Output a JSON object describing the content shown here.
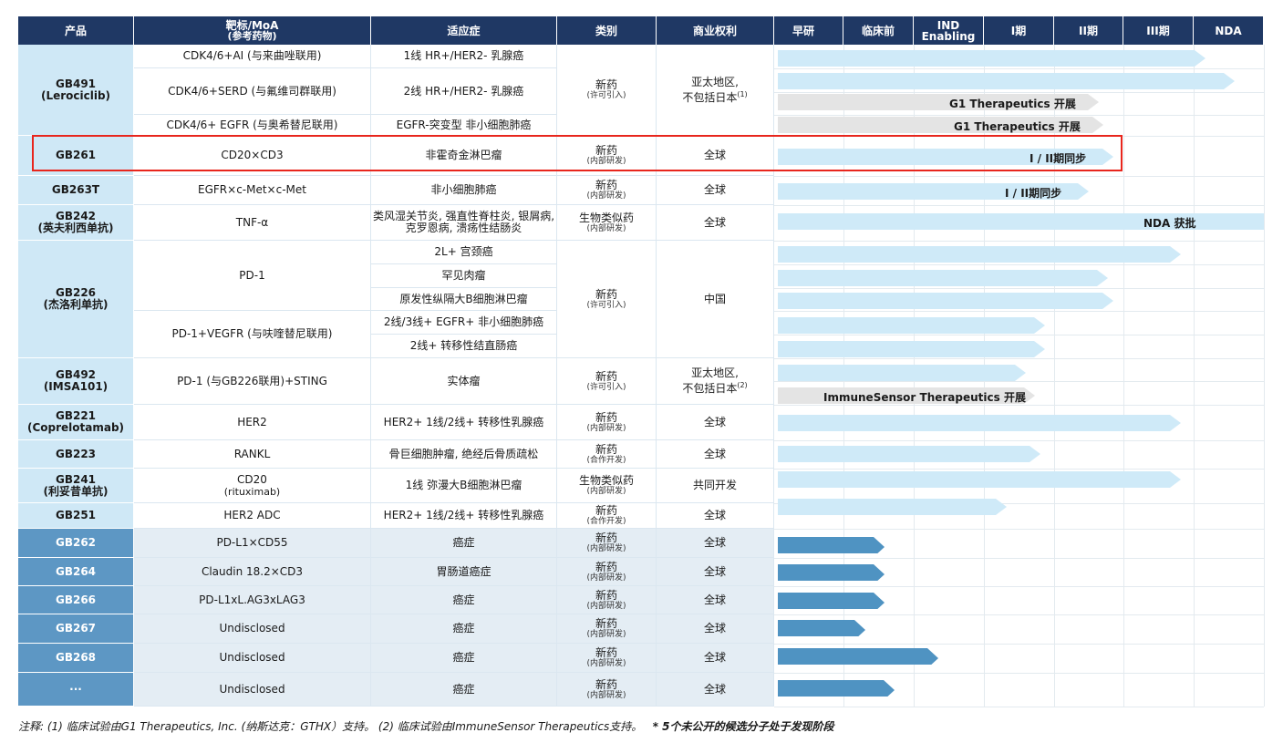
{
  "colors": {
    "header_bg": "#1f3864",
    "product_bg_light": "#cfe8f6",
    "product_bg_dark": "#5d97c4",
    "bar_light": "#cfeaf8",
    "bar_partner": "#e4e4e4",
    "bar_dark": "#4f93c2",
    "highlight": "#e8261d"
  },
  "headers": {
    "product": "产品",
    "target_line1": "靶标/MoA",
    "target_line2": "(参考药物)",
    "indication": "适应症",
    "category": "类别",
    "rights": "商业权利",
    "stages": [
      "早研",
      "临床前",
      "IND Enabling",
      "I期",
      "II期",
      "III期",
      "NDA"
    ]
  },
  "products": [
    {
      "name": "GB491",
      "name2": "(Lerociclib)"
    },
    {
      "name": "GB261",
      "name2": ""
    },
    {
      "name": "GB263T",
      "name2": ""
    },
    {
      "name": "GB242",
      "name2": "(英夫利西单抗)"
    },
    {
      "name": "GB226",
      "name2": "(杰洛利单抗)"
    },
    {
      "name": "GB492",
      "name2": "(IMSA101)"
    },
    {
      "name": "GB221",
      "name2": "(Coprelotamab)"
    },
    {
      "name": "GB223",
      "name2": ""
    },
    {
      "name": "GB241",
      "name2": "(利妥昔单抗)"
    },
    {
      "name": "GB251",
      "name2": ""
    },
    {
      "name": "GB262",
      "name2": ""
    },
    {
      "name": "GB264",
      "name2": ""
    },
    {
      "name": "GB266",
      "name2": ""
    },
    {
      "name": "GB267",
      "name2": ""
    },
    {
      "name": "GB268",
      "name2": ""
    },
    {
      "name": "···",
      "name2": ""
    }
  ],
  "targets": [
    {
      "l1": "CDK4/6+AI (与来曲唑联用)",
      "l2": ""
    },
    {
      "l1": "CDK4/6+SERD (与氟维司群联用)",
      "l2": ""
    },
    {
      "l1": "CDK4/6+ EGFR (与奥希替尼联用)",
      "l2": ""
    },
    {
      "l1": "CD20×CD3",
      "l2": ""
    },
    {
      "l1": "EGFR×c-Met×c-Met",
      "l2": ""
    },
    {
      "l1": "TNF-α",
      "l2": ""
    },
    {
      "l1": "PD-1",
      "l2": ""
    },
    {
      "l1": "PD-1+VEGFR (与呋喹替尼联用)",
      "l2": ""
    },
    {
      "l1": "PD-1 (与GB226联用)+STING",
      "l2": ""
    },
    {
      "l1": "HER2",
      "l2": ""
    },
    {
      "l1": "RANKL",
      "l2": ""
    },
    {
      "l1": "CD20",
      "l2": "(rituximab)"
    },
    {
      "l1": "HER2 ADC",
      "l2": ""
    },
    {
      "l1": "PD-L1×CD55",
      "l2": ""
    },
    {
      "l1": "Claudin 18.2×CD3",
      "l2": ""
    },
    {
      "l1": "PD-L1xL.AG3xLAG3",
      "l2": ""
    },
    {
      "l1": "Undisclosed",
      "l2": ""
    },
    {
      "l1": "Undisclosed",
      "l2": ""
    },
    {
      "l1": "Undisclosed",
      "l2": ""
    }
  ],
  "indications": [
    {
      "l1": "1线 HR+/HER2- 乳腺癌",
      "l2": ""
    },
    {
      "l1": "2线 HR+/HER2- 乳腺癌",
      "l2": ""
    },
    {
      "l1": "EGFR-突变型 非小细胞肺癌",
      "l2": ""
    },
    {
      "l1": "非霍奇金淋巴瘤",
      "l2": ""
    },
    {
      "l1": "非小细胞肺癌",
      "l2": ""
    },
    {
      "l1": "类风湿关节炎, 强直性脊柱炎, 银屑病,",
      "l2": "克罗恩病, 溃疡性结肠炎"
    },
    {
      "l1": "2L+ 宫颈癌",
      "l2": ""
    },
    {
      "l1": "罕见肉瘤",
      "l2": ""
    },
    {
      "l1": "原发性纵隔大B细胞淋巴瘤",
      "l2": ""
    },
    {
      "l1": "2线/3线+ EGFR+ 非小细胞肺癌",
      "l2": ""
    },
    {
      "l1": "2线+ 转移性结直肠癌",
      "l2": ""
    },
    {
      "l1": "实体瘤",
      "l2": ""
    },
    {
      "l1": "HER2+ 1线/2线+ 转移性乳腺癌",
      "l2": ""
    },
    {
      "l1": "骨巨细胞肿瘤, 绝经后骨质疏松",
      "l2": ""
    },
    {
      "l1": "1线 弥漫大B细胞淋巴瘤",
      "l2": ""
    },
    {
      "l1": "HER2+ 1线/2线+ 转移性乳腺癌",
      "l2": ""
    },
    {
      "l1": "癌症",
      "l2": ""
    },
    {
      "l1": "胃肠道癌症",
      "l2": ""
    },
    {
      "l1": "癌症",
      "l2": ""
    },
    {
      "l1": "癌症",
      "l2": ""
    },
    {
      "l1": "癌症",
      "l2": ""
    },
    {
      "l1": "癌症",
      "l2": ""
    }
  ],
  "categories": [
    {
      "main": "新药",
      "sub": "(许可引入)"
    },
    {
      "main": "新药",
      "sub": "(内部研发)"
    },
    {
      "main": "新药",
      "sub": "(内部研发)"
    },
    {
      "main": "生物类似药",
      "sub": "(内部研发)"
    },
    {
      "main": "新药",
      "sub": "(许可引入)"
    },
    {
      "main": "新药",
      "sub": "(许可引入)"
    },
    {
      "main": "新药",
      "sub": "(内部研发)"
    },
    {
      "main": "新药",
      "sub": "(合作开发)"
    },
    {
      "main": "生物类似药",
      "sub": "(内部研发)"
    },
    {
      "main": "新药",
      "sub": "(合作开发)"
    },
    {
      "main": "新药",
      "sub": "(内部研发)"
    },
    {
      "main": "新药",
      "sub": "(内部研发)"
    },
    {
      "main": "新药",
      "sub": "(内部研发)"
    },
    {
      "main": "新药",
      "sub": "(内部研发)"
    },
    {
      "main": "新药",
      "sub": "(内部研发)"
    },
    {
      "main": "新药",
      "sub": "(内部研发)"
    }
  ],
  "rights": [
    {
      "l1": "亚太地区,",
      "l2": "不包括日本",
      "sup": "(1)"
    },
    {
      "l1": "全球",
      "l2": "",
      "sup": ""
    },
    {
      "l1": "全球",
      "l2": "",
      "sup": ""
    },
    {
      "l1": "全球",
      "l2": "",
      "sup": ""
    },
    {
      "l1": "中国",
      "l2": "",
      "sup": ""
    },
    {
      "l1": "亚太地区,",
      "l2": "不包括日本",
      "sup": "(2)"
    },
    {
      "l1": "全球",
      "l2": "",
      "sup": ""
    },
    {
      "l1": "全球",
      "l2": "",
      "sup": ""
    },
    {
      "l1": "共同开发",
      "l2": "",
      "sup": ""
    },
    {
      "l1": "全球",
      "l2": "",
      "sup": ""
    },
    {
      "l1": "全球",
      "l2": "",
      "sup": ""
    },
    {
      "l1": "全球",
      "l2": "",
      "sup": ""
    },
    {
      "l1": "全球",
      "l2": "",
      "sup": ""
    },
    {
      "l1": "全球",
      "l2": "",
      "sup": ""
    },
    {
      "l1": "全球",
      "l2": "",
      "sup": ""
    },
    {
      "l1": "全球",
      "l2": "",
      "sup": ""
    }
  ],
  "bars": [
    {
      "style": "light",
      "progress": 0.88,
      "label": ""
    },
    {
      "style": "light",
      "progress": 0.94,
      "label": ""
    },
    {
      "style": "partner",
      "progress": 0.66,
      "label": "G1 Therapeutics 开展"
    },
    {
      "style": "partner",
      "progress": 0.67,
      "label": "G1 Therapeutics 开展"
    },
    {
      "style": "light",
      "progress": 0.69,
      "label": "I / II期同步"
    },
    {
      "style": "light",
      "progress": 0.64,
      "label": "I / II期同步"
    },
    {
      "style": "light",
      "progress": 1.0,
      "label": "NDA 获批"
    },
    {
      "style": "light",
      "progress": 0.83,
      "label": ""
    },
    {
      "style": "light",
      "progress": 0.68,
      "label": ""
    },
    {
      "style": "light",
      "progress": 0.69,
      "label": ""
    },
    {
      "style": "light",
      "progress": 0.55,
      "label": ""
    },
    {
      "style": "light",
      "progress": 0.55,
      "label": ""
    },
    {
      "style": "light",
      "progress": 0.51,
      "label": ""
    },
    {
      "style": "partner",
      "progress": 0.53,
      "label": "ImmuneSensor Therapeutics 开展"
    },
    {
      "style": "light",
      "progress": 0.83,
      "label": ""
    },
    {
      "style": "light",
      "progress": 0.54,
      "label": ""
    },
    {
      "style": "light",
      "progress": 0.83,
      "label": ""
    },
    {
      "style": "light",
      "progress": 0.47,
      "label": ""
    },
    {
      "style": "dark",
      "progress": 0.22,
      "label": ""
    },
    {
      "style": "dark",
      "progress": 0.22,
      "label": ""
    },
    {
      "style": "dark",
      "progress": 0.22,
      "label": ""
    },
    {
      "style": "dark",
      "progress": 0.18,
      "label": ""
    },
    {
      "style": "dark",
      "progress": 0.33,
      "label": ""
    },
    {
      "style": "dark",
      "progress": 0.24,
      "label": ""
    }
  ],
  "footnote": "注释: (1) 临床试验由G1 Therapeutics, Inc. (纳斯达克：GTHX）支持。 (2) 临床试验由ImmuneSensor Therapeutics支持。",
  "footnote_bold": "* 5个未公开的候选分子处于发现阶段"
}
